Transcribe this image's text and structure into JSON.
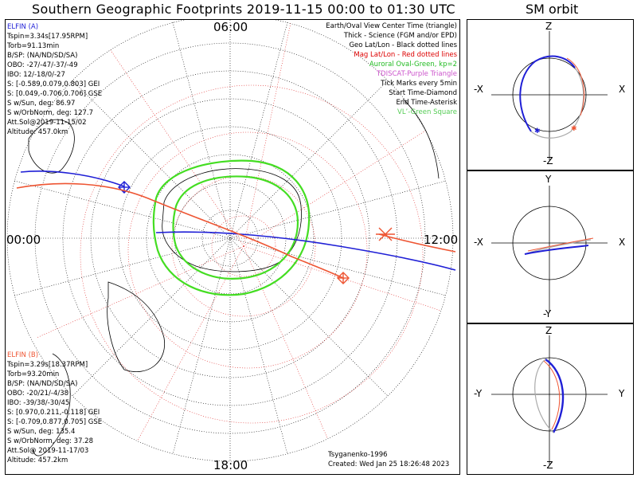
{
  "title": "Southern Geographic Footprints 2019-11-15 00:00 to 01:30 UTC",
  "sm_title": "SM orbit",
  "clock_labels": {
    "top": "06:00",
    "left": "00:00",
    "right": "12:00",
    "bottom": "18:00"
  },
  "elfin_a": {
    "name": "ELFIN (A)",
    "color": "#1f1fd6",
    "lines": [
      "Tspin=3.34s[17.95RPM]",
      "Torb=91.13min",
      "B/SP: (NA/ND/SD/SA)",
      "OBO: -27/-47/-37/-49",
      "IBO: 12/-18/0/-27",
      "S: [-0.589,0.079,0.803] GEI",
      "S: [0.049,-0.706,0.706] GSE",
      "S w/Sun, deg: 86.97",
      "S w/OrbNorm, deg: 127.7",
      "Att.Sol@2019-11-15/02",
      "Altitude: 457.0km"
    ]
  },
  "elfin_b": {
    "name": "ELFIN (B)",
    "color": "#ee5533",
    "lines": [
      "Tspin=3.29s[18.37RPM]",
      "Torb=93.20min",
      "B/SP: (NA/ND/SD/SA)",
      "OBO: -20/21/-4/38",
      "IBO: -39/38/-30/45",
      "S: [0.970,0.211,-0.118] GEI",
      "S: [-0.709,0.877,0.705] GSE",
      "S w/Sun, deg: 135.4",
      "S w/OrbNorm, deg: 37.28",
      "Att.Sol@ 2019-11-17/03",
      "Altitude: 457.2km"
    ]
  },
  "legend": [
    {
      "text": "Earth/Oval View Center Time (triangle)",
      "color": "#000000"
    },
    {
      "text": "Thick - Science (FGM and/or EPD)",
      "color": "#000000"
    },
    {
      "text": "Geo Lat/Lon - Black dotted lines",
      "color": "#000000"
    },
    {
      "text": "Mag Lat/Lon - Red dotted lines",
      "color": "#dd0000"
    },
    {
      "text": "Auroral Oval-Green, kp=2",
      "color": "#22bb22"
    },
    {
      "text": "TDISCAT-Purple Triangle",
      "color": "#cc55cc"
    },
    {
      "text": "Tick Marks every 5min",
      "color": "#000000"
    },
    {
      "text": "Start Time-Diamond",
      "color": "#000000"
    },
    {
      "text": "End Time-Asterisk",
      "color": "#000000"
    },
    {
      "text": "VL’-Green Square",
      "color": "#55cc55"
    }
  ],
  "footer": {
    "credit": "Tsyganenko-1996",
    "created": "Created: Wed Jan 25 18:26:48 2023"
  },
  "sm_panels": [
    {
      "top": "Z",
      "bottom": "-Z",
      "left": "-X",
      "right": "X"
    },
    {
      "top": "Y",
      "bottom": "-Y",
      "left": "-X",
      "right": "X"
    },
    {
      "top": "Z",
      "bottom": "-Z",
      "left": "-Y",
      "right": "Y"
    }
  ],
  "colors": {
    "elfin_a": "#1f1fd6",
    "elfin_b": "#ee5533",
    "oval": "#44dd22",
    "grid_geo": "#000000",
    "grid_mag": "#dd2222"
  }
}
